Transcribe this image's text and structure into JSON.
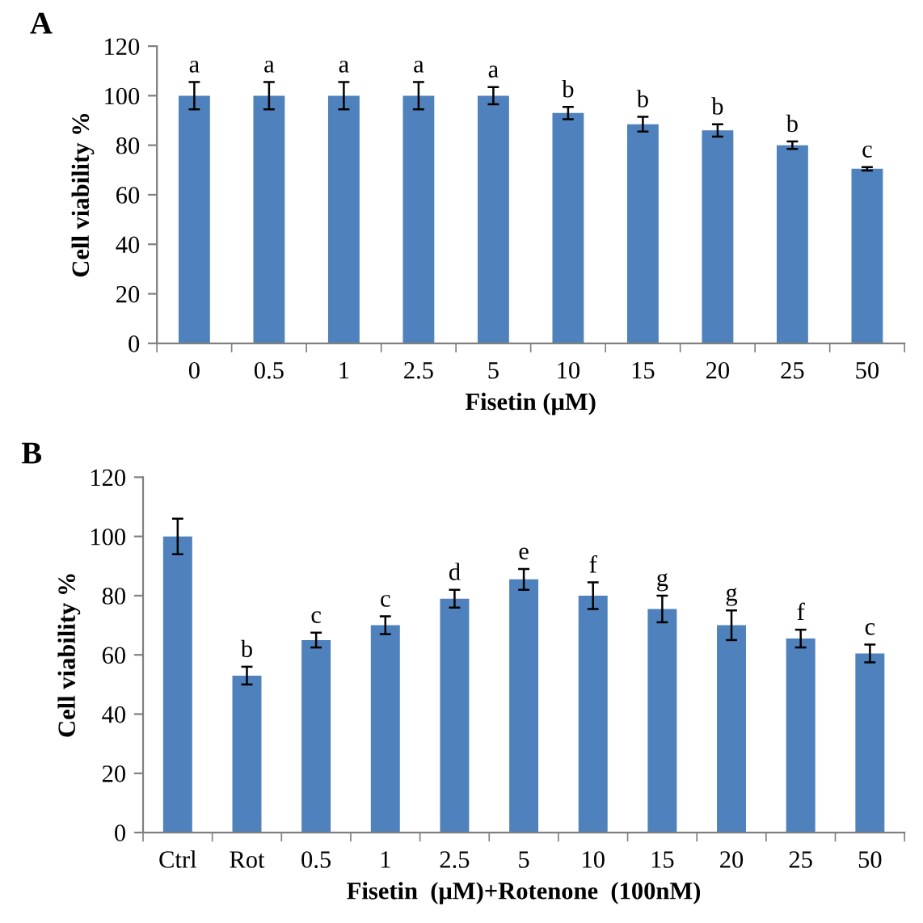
{
  "chart_data": [
    {
      "type": "bar",
      "title": "A",
      "xlabel": "Fisetin (μM)",
      "ylabel": "Cell viability %",
      "categories": [
        "0",
        "0.5",
        "1",
        "2.5",
        "5",
        "10",
        "15",
        "20",
        "25",
        "50"
      ],
      "values": [
        100,
        100,
        100,
        100,
        100,
        93,
        88.5,
        86,
        80,
        70.5
      ],
      "errors": [
        5.5,
        5.5,
        5.5,
        5.5,
        3.5,
        2.5,
        3,
        2.5,
        1.5,
        0.7
      ],
      "color": "#4f81bd",
      "ylim": [
        0,
        120
      ],
      "yticks": [
        0,
        20,
        40,
        60,
        80,
        100,
        120
      ],
      "grid": false,
      "legend": false,
      "annotations": [
        {
          "text": "a",
          "x": "0",
          "y": 105.5
        },
        {
          "text": "a",
          "x": "0.5",
          "y": 105.5
        },
        {
          "text": "a",
          "x": "1",
          "y": 105.5
        },
        {
          "text": "a",
          "x": "2.5",
          "y": 105.5
        },
        {
          "text": "a",
          "x": "5",
          "y": 103.5
        },
        {
          "text": "b",
          "x": "10",
          "y": 95.5
        },
        {
          "text": "b",
          "x": "15",
          "y": 91.5
        },
        {
          "text": "b",
          "x": "20",
          "y": 88.5
        },
        {
          "text": "b",
          "x": "25",
          "y": 81.5
        },
        {
          "text": "c",
          "x": "50",
          "y": 71.2
        }
      ]
    },
    {
      "type": "bar",
      "title": "B",
      "xlabel": "Fisetin  (μM)+Rotenone  (100nM)",
      "ylabel": "Cell viability %",
      "categories": [
        "Ctrl",
        "Rot",
        "0.5",
        "1",
        "2.5",
        "5",
        "10",
        "15",
        "20",
        "25",
        "50"
      ],
      "values": [
        100,
        53,
        65,
        70,
        79,
        85.5,
        80,
        75.5,
        70,
        65.5,
        60.5
      ],
      "errors": [
        6,
        3,
        2.5,
        3,
        3,
        3.5,
        4.5,
        4.5,
        5,
        3,
        3
      ],
      "color": "#4f81bd",
      "ylim": [
        0,
        120
      ],
      "yticks": [
        0,
        20,
        40,
        60,
        80,
        100,
        120
      ],
      "grid": false,
      "legend": false,
      "annotations": [
        {
          "text": "b",
          "x": "Rot",
          "y": 56
        },
        {
          "text": "c",
          "x": "0.5",
          "y": 67.5
        },
        {
          "text": "c",
          "x": "1",
          "y": 73
        },
        {
          "text": "d",
          "x": "2.5",
          "y": 82
        },
        {
          "text": "e",
          "x": "5",
          "y": 89
        },
        {
          "text": "f",
          "x": "10",
          "y": 84.5
        },
        {
          "text": "g",
          "x": "15",
          "y": 80
        },
        {
          "text": "g",
          "x": "20",
          "y": 75
        },
        {
          "text": "f",
          "x": "25",
          "y": 68.5
        },
        {
          "text": "c",
          "x": "50",
          "y": 63.5
        }
      ]
    }
  ]
}
